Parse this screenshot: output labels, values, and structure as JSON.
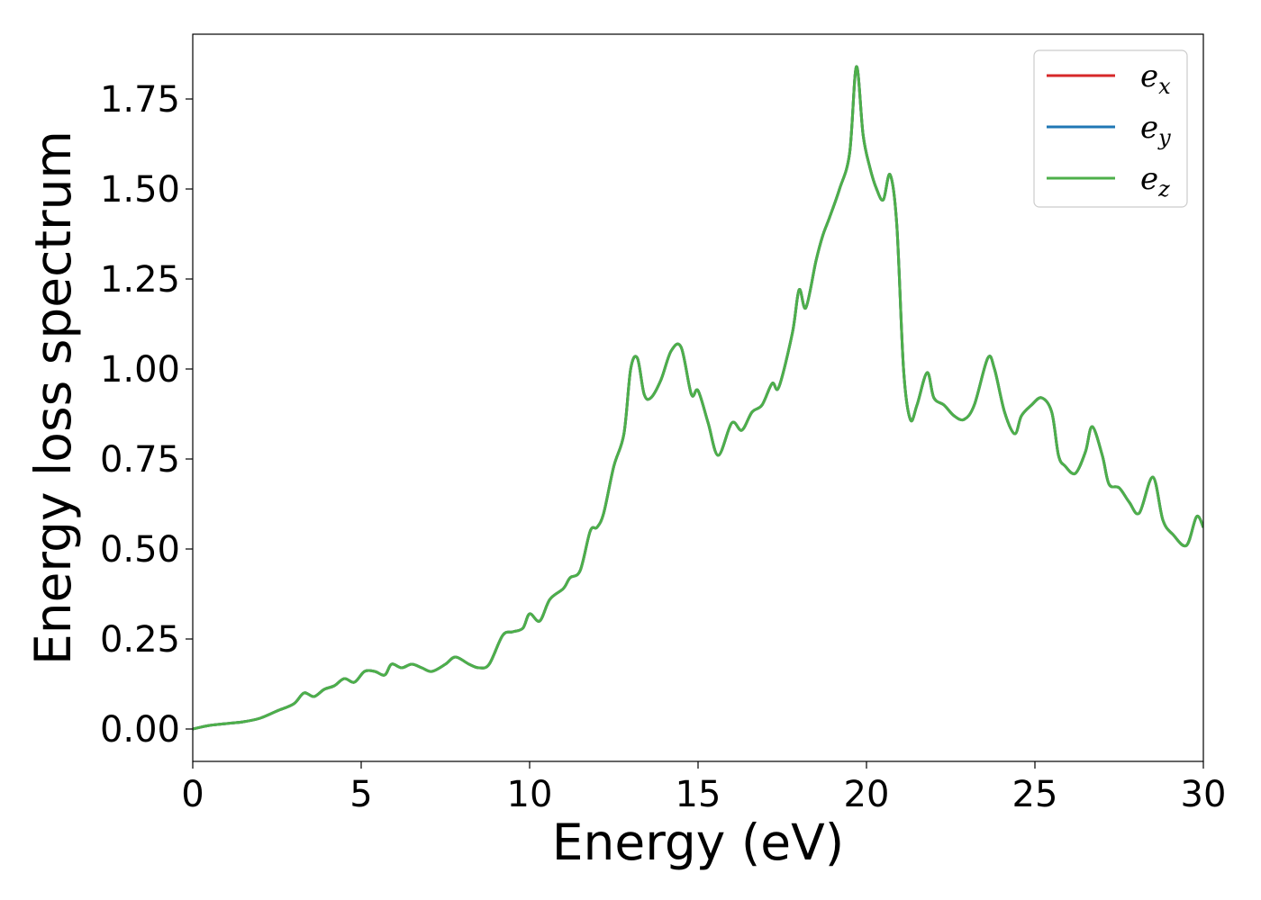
{
  "chart_data": {
    "type": "line",
    "xlabel": "Energy (eV)",
    "ylabel": "Energy loss spectrum",
    "xlim": [
      0,
      30
    ],
    "ylim": [
      -0.09,
      1.93
    ],
    "xticks": [
      0,
      5,
      10,
      15,
      20,
      25,
      30
    ],
    "xtick_labels": [
      "0",
      "5",
      "10",
      "15",
      "20",
      "25",
      "30"
    ],
    "yticks": [
      0.0,
      0.25,
      0.5,
      0.75,
      1.0,
      1.25,
      1.5,
      1.75
    ],
    "ytick_labels": [
      "0.00",
      "0.25",
      "0.50",
      "0.75",
      "1.00",
      "1.25",
      "1.50",
      "1.75"
    ],
    "grid": false,
    "legend_position": "top-right",
    "legend": [
      {
        "base": "e",
        "sub": "x",
        "color": "#d62728"
      },
      {
        "base": "e",
        "sub": "y",
        "color": "#1f77b4"
      },
      {
        "base": "e",
        "sub": "z",
        "color": "#4daf4a"
      }
    ],
    "x": [
      0,
      0.5,
      1.0,
      1.5,
      2.0,
      2.5,
      3.0,
      3.3,
      3.6,
      3.9,
      4.2,
      4.5,
      4.8,
      5.1,
      5.4,
      5.7,
      5.9,
      6.2,
      6.5,
      6.8,
      7.1,
      7.5,
      7.8,
      8.2,
      8.5,
      8.8,
      9.2,
      9.5,
      9.8,
      10.0,
      10.3,
      10.6,
      11.0,
      11.2,
      11.5,
      11.8,
      12.0,
      12.2,
      12.5,
      12.8,
      13.0,
      13.2,
      13.4,
      13.6,
      13.9,
      14.2,
      14.5,
      14.8,
      15.0,
      15.3,
      15.6,
      16.0,
      16.3,
      16.6,
      16.9,
      17.2,
      17.4,
      17.8,
      18.0,
      18.2,
      18.5,
      18.7,
      18.9,
      19.2,
      19.5,
      19.7,
      19.9,
      20.1,
      20.3,
      20.5,
      20.7,
      20.9,
      21.1,
      21.3,
      21.5,
      21.8,
      22.0,
      22.3,
      22.6,
      22.9,
      23.2,
      23.6,
      23.8,
      24.1,
      24.4,
      24.6,
      24.9,
      25.2,
      25.5,
      25.7,
      25.9,
      26.2,
      26.5,
      26.7,
      27.0,
      27.2,
      27.5,
      27.8,
      28.1,
      28.5,
      28.8,
      29.1,
      29.5,
      29.8,
      30.0
    ],
    "series": [
      {
        "name": "e_x",
        "color": "#d62728",
        "values": [
          0.0,
          0.01,
          0.015,
          0.02,
          0.03,
          0.05,
          0.07,
          0.1,
          0.09,
          0.11,
          0.12,
          0.14,
          0.13,
          0.16,
          0.16,
          0.15,
          0.18,
          0.17,
          0.18,
          0.17,
          0.16,
          0.18,
          0.2,
          0.18,
          0.17,
          0.18,
          0.26,
          0.27,
          0.28,
          0.32,
          0.3,
          0.36,
          0.39,
          0.42,
          0.44,
          0.55,
          0.56,
          0.6,
          0.73,
          0.82,
          1.0,
          1.03,
          0.93,
          0.92,
          0.97,
          1.05,
          1.06,
          0.93,
          0.94,
          0.85,
          0.76,
          0.85,
          0.83,
          0.88,
          0.9,
          0.96,
          0.95,
          1.1,
          1.22,
          1.17,
          1.3,
          1.37,
          1.42,
          1.5,
          1.6,
          1.84,
          1.65,
          1.56,
          1.5,
          1.47,
          1.54,
          1.4,
          1.0,
          0.86,
          0.9,
          0.99,
          0.92,
          0.9,
          0.87,
          0.86,
          0.9,
          1.03,
          1.0,
          0.88,
          0.82,
          0.87,
          0.9,
          0.92,
          0.88,
          0.76,
          0.73,
          0.71,
          0.77,
          0.84,
          0.76,
          0.68,
          0.67,
          0.63,
          0.6,
          0.7,
          0.58,
          0.54,
          0.51,
          0.59,
          0.56
        ]
      },
      {
        "name": "e_y",
        "color": "#1f77b4",
        "values": [
          0.0,
          0.01,
          0.015,
          0.02,
          0.03,
          0.05,
          0.07,
          0.1,
          0.09,
          0.11,
          0.12,
          0.14,
          0.13,
          0.16,
          0.16,
          0.15,
          0.18,
          0.17,
          0.18,
          0.17,
          0.16,
          0.18,
          0.2,
          0.18,
          0.17,
          0.18,
          0.26,
          0.27,
          0.28,
          0.32,
          0.3,
          0.36,
          0.39,
          0.42,
          0.44,
          0.55,
          0.56,
          0.6,
          0.73,
          0.82,
          1.0,
          1.03,
          0.93,
          0.92,
          0.97,
          1.05,
          1.06,
          0.93,
          0.94,
          0.85,
          0.76,
          0.85,
          0.83,
          0.88,
          0.9,
          0.96,
          0.95,
          1.1,
          1.22,
          1.17,
          1.3,
          1.37,
          1.42,
          1.5,
          1.6,
          1.84,
          1.65,
          1.56,
          1.5,
          1.47,
          1.54,
          1.4,
          1.0,
          0.86,
          0.9,
          0.99,
          0.92,
          0.9,
          0.87,
          0.86,
          0.9,
          1.03,
          1.0,
          0.88,
          0.82,
          0.87,
          0.9,
          0.92,
          0.88,
          0.76,
          0.73,
          0.71,
          0.77,
          0.84,
          0.76,
          0.68,
          0.67,
          0.63,
          0.6,
          0.7,
          0.58,
          0.54,
          0.51,
          0.59,
          0.56
        ]
      },
      {
        "name": "e_z",
        "color": "#4daf4a",
        "values": [
          0.0,
          0.01,
          0.015,
          0.02,
          0.03,
          0.05,
          0.07,
          0.1,
          0.09,
          0.11,
          0.12,
          0.14,
          0.13,
          0.16,
          0.16,
          0.15,
          0.18,
          0.17,
          0.18,
          0.17,
          0.16,
          0.18,
          0.2,
          0.18,
          0.17,
          0.18,
          0.26,
          0.27,
          0.28,
          0.32,
          0.3,
          0.36,
          0.39,
          0.42,
          0.44,
          0.55,
          0.56,
          0.6,
          0.73,
          0.82,
          1.0,
          1.03,
          0.93,
          0.92,
          0.97,
          1.05,
          1.06,
          0.93,
          0.94,
          0.85,
          0.76,
          0.85,
          0.83,
          0.88,
          0.9,
          0.96,
          0.95,
          1.1,
          1.22,
          1.17,
          1.3,
          1.37,
          1.42,
          1.5,
          1.6,
          1.84,
          1.65,
          1.56,
          1.5,
          1.47,
          1.54,
          1.4,
          1.0,
          0.86,
          0.9,
          0.99,
          0.92,
          0.9,
          0.87,
          0.86,
          0.9,
          1.03,
          1.0,
          0.88,
          0.82,
          0.87,
          0.9,
          0.92,
          0.88,
          0.76,
          0.73,
          0.71,
          0.77,
          0.84,
          0.76,
          0.68,
          0.67,
          0.63,
          0.6,
          0.7,
          0.58,
          0.54,
          0.51,
          0.59,
          0.56
        ]
      }
    ]
  }
}
